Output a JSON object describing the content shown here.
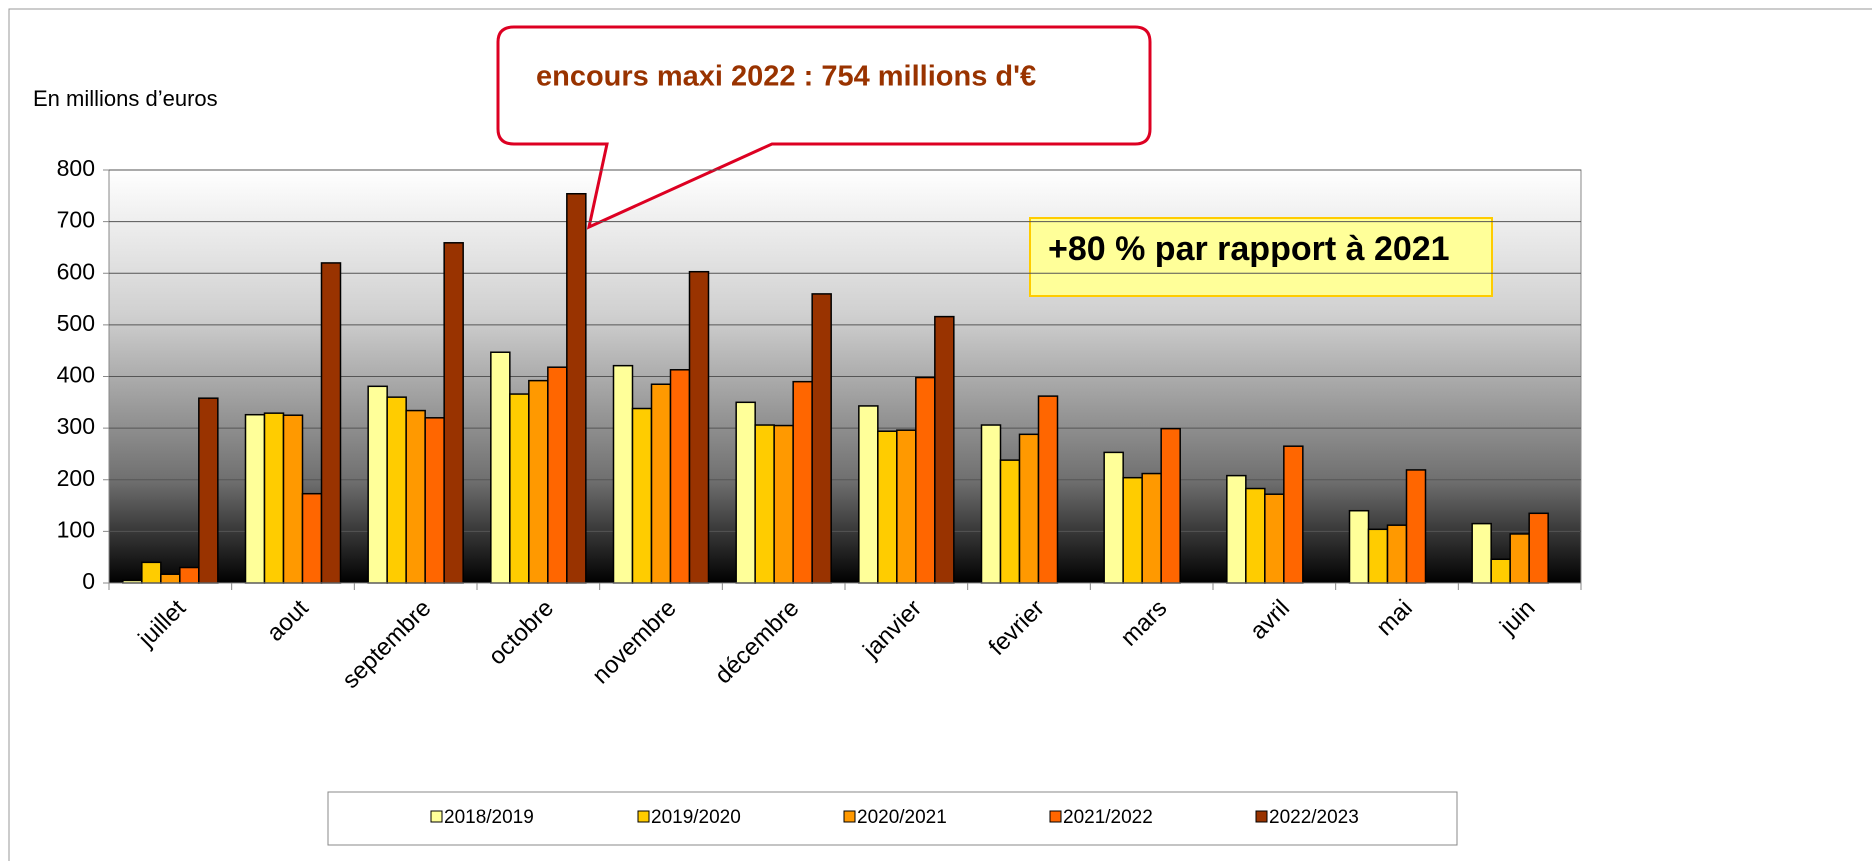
{
  "chart_data": {
    "type": "bar",
    "y_label": "En millions d’euros",
    "annotations": [
      "encours maxi 2022 : 754 millions d'€",
      "+80 % par rapport à 2021"
    ],
    "categories": [
      "juillet",
      "aout",
      "septembre",
      "octobre",
      "novembre",
      "décembre",
      "janvier",
      "fevrier",
      "mars",
      "avril",
      "mai",
      "juin"
    ],
    "series": [
      {
        "name": "2018/2019",
        "color": "#ffff99",
        "values": [
          5,
          326,
          381,
          447,
          421,
          350,
          343,
          306,
          253,
          208,
          140,
          115
        ]
      },
      {
        "name": "2019/2020",
        "color": "#ffcc00",
        "values": [
          40,
          329,
          360,
          366,
          338,
          306,
          294,
          238,
          204,
          183,
          104,
          46
        ]
      },
      {
        "name": "2020/2021",
        "color": "#ff9900",
        "values": [
          17,
          325,
          334,
          392,
          385,
          305,
          296,
          288,
          212,
          172,
          112,
          95
        ]
      },
      {
        "name": "2021/2022",
        "color": "#ff6600",
        "values": [
          30,
          173,
          320,
          418,
          413,
          390,
          398,
          362,
          299,
          265,
          219,
          135
        ]
      },
      {
        "name": "2022/2023",
        "color": "#993300",
        "values": [
          358,
          620,
          659,
          754,
          603,
          560,
          516,
          null,
          null,
          null,
          null,
          null
        ]
      }
    ],
    "ylim": [
      0,
      800
    ],
    "yticks": [
      0,
      100,
      200,
      300,
      400,
      500,
      600,
      700,
      800
    ],
    "grid": true,
    "legend": "bottom"
  }
}
